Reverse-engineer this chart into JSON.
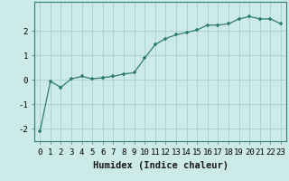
{
  "x": [
    0,
    1,
    2,
    3,
    4,
    5,
    6,
    7,
    8,
    9,
    10,
    11,
    12,
    13,
    14,
    15,
    16,
    17,
    18,
    19,
    20,
    21,
    22,
    23
  ],
  "y": [
    -2.1,
    -0.05,
    -0.3,
    0.05,
    0.15,
    0.05,
    0.1,
    0.15,
    0.25,
    0.3,
    0.9,
    1.45,
    1.7,
    1.85,
    1.95,
    2.05,
    2.25,
    2.25,
    2.3,
    2.5,
    2.6,
    2.5,
    2.5,
    2.3
  ],
  "line_color": "#2e7d6e",
  "marker": "+",
  "marker_size": 3.5,
  "marker_linewidth": 1.2,
  "bg_color": "#cceae7",
  "grid_color": "#aad4d0",
  "xlabel": "Humidex (Indice chaleur)",
  "xlim": [
    -0.5,
    23.5
  ],
  "ylim": [
    -2.5,
    3.2
  ],
  "yticks": [
    -2,
    -1,
    0,
    1,
    2
  ],
  "xticks": [
    0,
    1,
    2,
    3,
    4,
    5,
    6,
    7,
    8,
    9,
    10,
    11,
    12,
    13,
    14,
    15,
    16,
    17,
    18,
    19,
    20,
    21,
    22,
    23
  ],
  "tick_fontsize": 6.5,
  "label_fontsize": 7.5
}
